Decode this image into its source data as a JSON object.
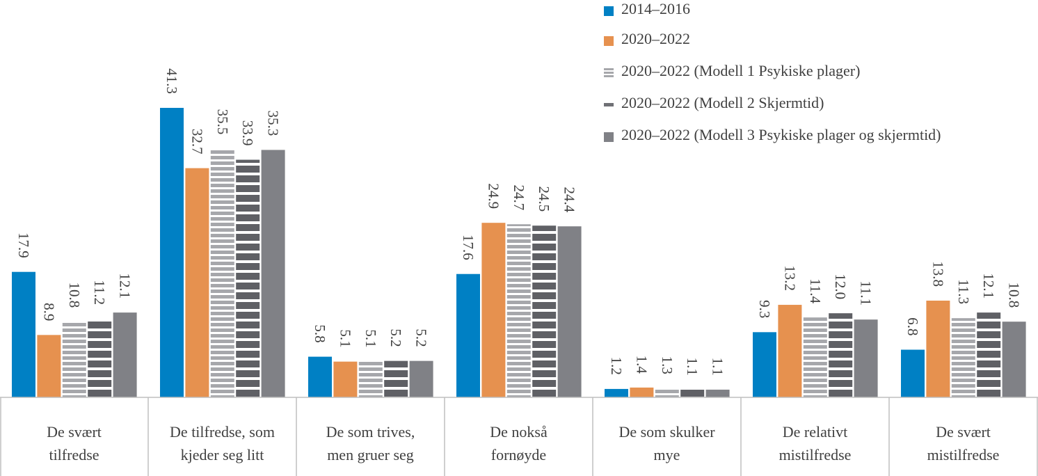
{
  "chart_data": {
    "type": "bar",
    "title": "",
    "xlabel": "",
    "ylabel": "",
    "ylim": [
      0,
      41.3
    ],
    "grid": false,
    "legend_position": "top-right",
    "categories": [
      "De svært tilfredse",
      "De tilfredse, som kjeder seg litt",
      "De som trives, men gruer seg",
      "De nokså fornøyde",
      "De som skulker mye",
      "De relativt mistilfredse",
      "De svært mistilfredse"
    ],
    "category_lines": [
      [
        "De svært",
        "tilfredse"
      ],
      [
        "De tilfredse, som",
        "kjeder seg litt"
      ],
      [
        "De som trives,",
        "men gruer seg"
      ],
      [
        "De nokså",
        "fornøyde"
      ],
      [
        "De som skulker",
        "mye"
      ],
      [
        "De relativt",
        "mistilfredse"
      ],
      [
        "De svært",
        "mistilfredse"
      ]
    ],
    "series": [
      {
        "name": "2014–2016",
        "color": "#0080c4",
        "pattern": "solid",
        "values": [
          17.9,
          41.3,
          5.8,
          17.6,
          1.2,
          9.3,
          6.8
        ],
        "labels": [
          "17.9",
          "41.3",
          "5.8",
          "17.6",
          "1.2",
          "9.3",
          "6.8"
        ]
      },
      {
        "name": "2020–2022",
        "color": "#e6914f",
        "pattern": "solid",
        "values": [
          8.9,
          32.7,
          5.1,
          24.9,
          1.4,
          13.2,
          13.8
        ],
        "labels": [
          "8.9",
          "32.7",
          "5.1",
          "24.9",
          "1.4",
          "13.2",
          "13.8"
        ]
      },
      {
        "name": "2020–2022 (Modell 1 Psykiske plager)",
        "color": "#a6a7ab",
        "pattern": "light-stripes",
        "values": [
          10.8,
          35.5,
          5.1,
          24.7,
          1.3,
          11.4,
          11.3
        ],
        "labels": [
          "10.8",
          "35.5",
          "5.1",
          "24.7",
          "1.3",
          "11.4",
          "11.3"
        ]
      },
      {
        "name": "2020–2022 (Modell 2 Skjermtid)",
        "color": "#6f7075",
        "pattern": "dark-stripes",
        "values": [
          11.2,
          33.9,
          5.2,
          24.5,
          1.1,
          12.0,
          12.1
        ],
        "labels": [
          "11.2",
          "33.9",
          "5.2",
          "24.5",
          "1.1",
          "12.0",
          "12.1"
        ]
      },
      {
        "name": "2020–2022 (Modell 3 Psykiske plager og skjermtid)",
        "color": "#808186",
        "pattern": "solid",
        "values": [
          12.1,
          35.3,
          5.2,
          24.4,
          1.1,
          11.1,
          10.8
        ],
        "labels": [
          "12.1",
          "35.3",
          "5.2",
          "24.4",
          "1.1",
          "11.1",
          "10.8"
        ]
      }
    ]
  }
}
